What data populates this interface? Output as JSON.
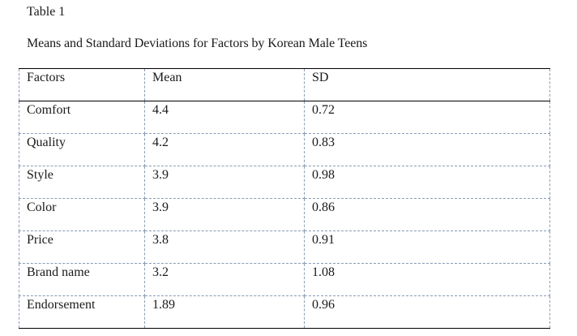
{
  "table_label": "Table 1",
  "caption": "Means and Standard Deviations for Factors by Korean Male Teens",
  "columns": [
    "Factors",
    "Mean",
    "SD"
  ],
  "rows": [
    {
      "factor": "Comfort",
      "mean": "4.4",
      "sd": "0.72"
    },
    {
      "factor": "Quality",
      "mean": "4.2",
      "sd": "0.83"
    },
    {
      "factor": "Style",
      "mean": "3.9",
      "sd": "0.98"
    },
    {
      "factor": "Color",
      "mean": "3.9",
      "sd": "0.86"
    },
    {
      "factor": "Price",
      "mean": "3.8",
      "sd": "0.91"
    },
    {
      "factor": "Brand name",
      "mean": "3.2",
      "sd": "1.08"
    },
    {
      "factor": "Endorsement",
      "mean": "1.89",
      "sd": "0.96"
    }
  ]
}
